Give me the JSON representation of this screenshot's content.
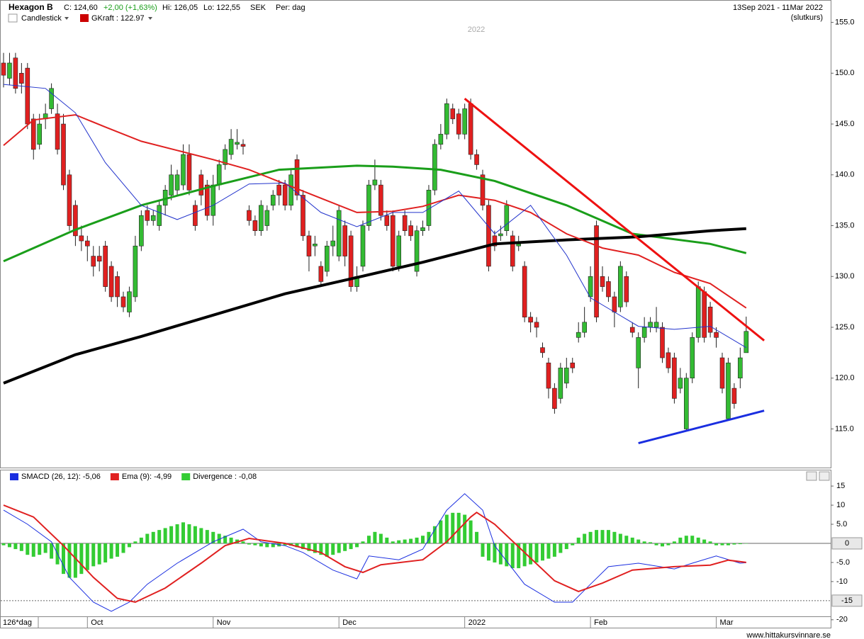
{
  "header": {
    "symbol": "Hexagon B",
    "close": "C: 124,60",
    "change": "+2,00 (+1,63%)",
    "high": "Hi: 126,05",
    "low": "Lo: 122,55",
    "currency": "SEK",
    "period": "Per: dag",
    "range": "13Sep 2021 - 11Mar 2022",
    "price_type": "(slutkurs)",
    "chart_style": "Candlestick",
    "overlay": "GKraft : 122.97",
    "watermark": "2022"
  },
  "footer": "www.hittakursvinnare.se",
  "chart_data": [
    {
      "type": "candlestick",
      "xlabel": "126*dag",
      "categories": [
        null,
        null,
        null,
        null,
        null,
        null,
        null,
        null,
        null,
        null,
        null,
        null,
        null,
        null,
        "Oct",
        null,
        null,
        null,
        null,
        null,
        null,
        null,
        null,
        null,
        null,
        null,
        null,
        null,
        null,
        null,
        null,
        null,
        null,
        null,
        null,
        "Nov",
        null,
        null,
        null,
        null,
        null,
        null,
        null,
        null,
        null,
        null,
        null,
        null,
        null,
        null,
        null,
        null,
        null,
        null,
        null,
        null,
        "Dec",
        null,
        null,
        null,
        null,
        null,
        null,
        null,
        null,
        null,
        null,
        null,
        null,
        null,
        null,
        null,
        null,
        null,
        null,
        null,
        null,
        "2022",
        null,
        null,
        null,
        null,
        null,
        null,
        null,
        null,
        null,
        null,
        null,
        null,
        null,
        null,
        null,
        null,
        null,
        null,
        null,
        null,
        "Feb",
        null,
        null,
        null,
        null,
        null,
        null,
        null,
        null,
        null,
        null,
        null,
        null,
        null,
        null,
        null,
        null,
        null,
        null,
        null,
        null,
        "Mar",
        null,
        null,
        null,
        null,
        null,
        null,
        null
      ],
      "up_color": "#33bb33",
      "down_color": "#e02020",
      "candles": {
        "open": [
          151,
          149.5,
          151.5,
          150,
          150.5,
          145.5,
          143,
          145.5,
          146.5,
          146,
          145,
          140,
          137,
          134,
          133.5,
          132,
          132,
          133,
          131,
          130,
          128,
          126.5,
          128,
          133,
          136.5,
          135.5,
          135,
          137,
          138,
          138.5,
          139,
          142,
          137,
          140,
          139,
          136,
          139,
          141,
          142,
          143,
          143,
          136.5,
          135.5,
          134.5,
          135,
          137,
          139,
          139,
          137,
          141.5,
          138,
          134,
          133,
          131,
          130.5,
          133,
          132,
          135,
          134,
          129,
          131,
          135,
          139,
          139,
          136,
          136,
          131,
          136,
          135,
          130.5,
          134.5,
          135,
          138.5,
          143,
          144,
          146.5,
          146,
          144,
          147,
          142,
          140,
          137,
          134,
          134,
          134.5,
          134,
          133,
          131,
          126,
          125.5,
          123,
          121.5,
          119,
          118,
          119.5,
          121.5,
          124,
          124.5,
          128,
          135,
          130,
          129.5,
          128,
          127,
          130,
          125,
          121,
          124,
          125,
          125,
          125,
          122.5,
          122,
          119,
          115,
          120,
          124,
          128.5,
          127,
          124.5,
          122,
          116,
          119,
          120,
          122.5
        ],
        "high": [
          152,
          152,
          152,
          151,
          151,
          146,
          146,
          147,
          149,
          147,
          146,
          140.5,
          137.5,
          135,
          134,
          133,
          133,
          133.5,
          131.5,
          130.5,
          128.5,
          129,
          134,
          136.5,
          137,
          136.5,
          137.5,
          139,
          141,
          140.5,
          143,
          143,
          137.5,
          140.5,
          139.5,
          140,
          141.5,
          143,
          144.5,
          144.5,
          143.5,
          137,
          136,
          137.5,
          137,
          138.5,
          139.5,
          139.5,
          140.5,
          142,
          138.5,
          134.5,
          134,
          131.5,
          133.5,
          135,
          137,
          135.5,
          134.5,
          131,
          135.5,
          139.5,
          141.5,
          139.5,
          136.5,
          136.5,
          134.5,
          136.5,
          135.5,
          135,
          135.5,
          139,
          143.5,
          145,
          147.5,
          147,
          146.5,
          147,
          147.5,
          142.5,
          140.5,
          137.5,
          134.5,
          135,
          137.5,
          134.5,
          134,
          131.5,
          126.5,
          126,
          123.5,
          122,
          119.5,
          121.5,
          122,
          122,
          125.5,
          127,
          131,
          135.5,
          131,
          130,
          128.5,
          131.5,
          130.5,
          125.5,
          124.5,
          126,
          126,
          127,
          125.5,
          123,
          122.5,
          121,
          120.5,
          124.5,
          129.5,
          129,
          127.5,
          125,
          122.5,
          122,
          119.5,
          123,
          126.05
        ],
        "low": [
          148.6,
          148.8,
          148,
          148,
          144.5,
          141.5,
          142.5,
          144.5,
          146,
          142,
          138.5,
          134.5,
          133,
          132.5,
          131.5,
          130,
          130.5,
          128.5,
          127.5,
          127,
          126.5,
          126,
          127.5,
          132.5,
          135,
          135,
          134.5,
          136,
          137.5,
          138,
          138.5,
          138,
          134.5,
          137,
          135.5,
          135,
          138.5,
          140.5,
          141.5,
          142.5,
          142,
          135,
          134,
          134,
          134.5,
          136.5,
          137,
          136.5,
          136.5,
          137.5,
          133.5,
          130.5,
          132,
          129,
          130,
          132,
          131.5,
          131,
          128.5,
          128.5,
          130.5,
          134.5,
          138.5,
          135.5,
          134.5,
          130.5,
          130.5,
          134,
          133.5,
          130,
          134,
          134.5,
          138,
          142.5,
          143.5,
          145,
          143.5,
          143.5,
          141.5,
          140.5,
          136.5,
          130.5,
          132.5,
          133.5,
          134,
          130.5,
          132.5,
          125.5,
          124.5,
          124,
          122,
          118,
          116.5,
          117.5,
          119,
          120.5,
          123.5,
          124,
          127.5,
          125.5,
          128.5,
          127.5,
          125,
          126.5,
          127,
          124,
          119,
          123.5,
          124.5,
          124.5,
          121.5,
          120.5,
          117.5,
          118.5,
          114.8,
          119.5,
          123.5,
          123.5,
          124,
          123,
          118.5,
          115.8,
          117,
          119,
          122.55
        ],
        "close": [
          149.8,
          151,
          148.5,
          149,
          145,
          142.5,
          145,
          146,
          148.5,
          142.5,
          139,
          135,
          134,
          133.5,
          133,
          131,
          131.5,
          129,
          128,
          128,
          127,
          128.5,
          133,
          136,
          135.5,
          136,
          137,
          138.5,
          140,
          140,
          142,
          138.5,
          135,
          138,
          136,
          139,
          141,
          142.5,
          143.5,
          143.2,
          142.8,
          135.5,
          134.5,
          137,
          136.5,
          138,
          138,
          137,
          140,
          138,
          134,
          132,
          133.2,
          129.5,
          133,
          133.5,
          136.5,
          132,
          129,
          130,
          135,
          139,
          139.5,
          136,
          135,
          131,
          134,
          134.5,
          134,
          134.5,
          134.8,
          138.5,
          143,
          144,
          147,
          145.5,
          144,
          146.5,
          142,
          141,
          137,
          131,
          133,
          134.2,
          137,
          131,
          133.2,
          126,
          125.5,
          125,
          122.5,
          119,
          117,
          121,
          121,
          121,
          124.5,
          125.5,
          130,
          126,
          129,
          128,
          126.5,
          131,
          127.5,
          124.5,
          124,
          125,
          125.5,
          125.5,
          122,
          121,
          118,
          120,
          120,
          124,
          129,
          124,
          124.5,
          124,
          119,
          121.5,
          117.5,
          122,
          124.6
        ]
      },
      "lines": [
        {
          "color": "#1a9e1a",
          "width": 3,
          "x": [
            0,
            12,
            23,
            35,
            46,
            59,
            65,
            73,
            82,
            94,
            105,
            118,
            124
          ],
          "values": [
            131.5,
            134.6,
            137,
            138.9,
            140.5,
            140.9,
            140.8,
            140.5,
            139.4,
            137,
            134.2,
            133.2,
            132.3
          ]
        },
        {
          "color": "#000000",
          "width": 4,
          "x": [
            0,
            12,
            23,
            35,
            47,
            59,
            70,
            82,
            94,
            106,
            118,
            124
          ],
          "values": [
            119.5,
            122.3,
            124.1,
            126.2,
            128.3,
            129.9,
            131.4,
            133.2,
            133.6,
            133.9,
            134.5,
            134.7
          ]
        },
        {
          "color": "#e02020",
          "width": 2,
          "x": [
            0,
            5,
            12,
            17,
            23,
            29,
            35,
            41,
            47,
            53,
            59,
            65,
            70,
            76,
            82,
            88,
            94,
            100,
            106,
            112,
            118,
            124
          ],
          "values": [
            142.9,
            145.4,
            145.9,
            144.7,
            143.3,
            142.4,
            141.5,
            140.5,
            139.1,
            137.7,
            136.3,
            136.4,
            136.9,
            138,
            137.5,
            136.3,
            134.2,
            132.8,
            132.1,
            130.4,
            129.3,
            126.9
          ]
        },
        {
          "color": "#2233cc",
          "width": 1,
          "x": [
            0,
            7,
            12,
            17,
            23,
            29,
            35,
            41,
            47,
            53,
            59,
            65,
            70,
            76,
            82,
            88,
            94,
            98,
            102,
            106,
            112,
            118,
            124
          ],
          "values": [
            148.9,
            148.5,
            146.1,
            141.2,
            137,
            135.6,
            137,
            139.1,
            139.2,
            136.3,
            134.9,
            136.3,
            136.3,
            138.4,
            134.2,
            137,
            132.1,
            127.9,
            126.5,
            125.1,
            124.8,
            125.1,
            123
          ]
        },
        {
          "color": "#ee1111",
          "width": 3,
          "x": [
            77,
            127
          ],
          "values": [
            147.5,
            123.7
          ]
        },
        {
          "color": "#1a2ee0",
          "width": 3,
          "x": [
            106,
            127
          ],
          "values": [
            113.6,
            116.8
          ]
        }
      ],
      "ylim": [
        111.2,
        157.2
      ],
      "yticks": [
        {
          "value": 115,
          "label": "115.0"
        },
        {
          "value": 120,
          "label": "120.0"
        },
        {
          "value": 125,
          "label": "125.0"
        },
        {
          "value": 130,
          "label": "130.0"
        },
        {
          "value": 135,
          "label": "135.0"
        },
        {
          "value": 140,
          "label": "140.0"
        },
        {
          "value": 145,
          "label": "145.0"
        },
        {
          "value": 150,
          "label": "150.0"
        },
        {
          "value": 155,
          "label": "155.0"
        }
      ]
    },
    {
      "type": "macd",
      "series": [
        {
          "name": "SMACD (26, 12): -5,06",
          "color": "#1a2ee0",
          "x": [
            0,
            4,
            8,
            11,
            15,
            18,
            21,
            24,
            29,
            35,
            40,
            43,
            47,
            50,
            55,
            59,
            61,
            66,
            70,
            74,
            77,
            80,
            82,
            87,
            92,
            95,
            98,
            101,
            106,
            112,
            115,
            119,
            123,
            124
          ],
          "values": [
            8.7,
            5,
            0.4,
            -8.9,
            -15.4,
            -17.8,
            -15.4,
            -10.7,
            -5.2,
            0.4,
            3.7,
            0.4,
            -0.6,
            -2.4,
            -7,
            -9.3,
            -3.3,
            -4.3,
            -1.5,
            8.7,
            13,
            8.7,
            -0.6,
            -10.7,
            -15.4,
            -15.4,
            -10.7,
            -6.1,
            -5.2,
            -6.7,
            -5.2,
            -3.3,
            -5.2,
            -5.06
          ]
        },
        {
          "name": "Ema (9): -4,99",
          "color": "#e02020",
          "x": [
            0,
            5,
            10,
            15,
            19,
            22,
            27,
            33,
            37,
            41,
            47,
            53,
            57,
            60,
            63,
            70,
            74,
            78,
            79,
            82,
            87,
            92,
            96,
            100,
            105,
            112,
            118,
            121,
            124
          ],
          "values": [
            10,
            6.9,
            -0.6,
            -8.9,
            -14.4,
            -15.4,
            -11.7,
            -5.2,
            -0.6,
            1.3,
            0,
            -2.4,
            -6.1,
            -7.6,
            -5.6,
            -4.3,
            0.4,
            6.9,
            8.1,
            5,
            -2.4,
            -9.8,
            -12.6,
            -10.4,
            -7,
            -6.1,
            -5.7,
            -4.4,
            -4.99
          ]
        }
      ],
      "histogram": {
        "name": "Divergence : -0,08",
        "color": "#33cc33",
        "values": [
          -0.5,
          -1,
          -1.5,
          -2,
          -3,
          -3.5,
          -3,
          -2.5,
          -4,
          -5.5,
          -8,
          -9,
          -9,
          -8,
          -7,
          -6,
          -5.5,
          -5,
          -4,
          -3.5,
          -2.5,
          -1,
          0.5,
          1.5,
          2.5,
          3,
          3.5,
          4,
          4.5,
          5,
          5.5,
          5,
          4.5,
          4,
          3.5,
          3,
          2.5,
          2,
          1.5,
          1,
          0.5,
          -0.3,
          -0.5,
          -0.8,
          -1,
          -1,
          -0.8,
          -0.5,
          -0.6,
          -1,
          -1.5,
          -2,
          -2.5,
          -3,
          -3.5,
          -3,
          -2.5,
          -2,
          -1.5,
          -1,
          0.5,
          2,
          3,
          2.5,
          1.5,
          0.5,
          0.8,
          1,
          1.2,
          1.5,
          2,
          3,
          4.5,
          6,
          7.5,
          8,
          8,
          7.5,
          6,
          3,
          -3.5,
          -4.5,
          -5,
          -5.5,
          -6,
          -6.5,
          -6.5,
          -6,
          -5.5,
          -5,
          -4.5,
          -4,
          -3.5,
          -2.5,
          -1.5,
          -0.5,
          1.5,
          2.5,
          3,
          3.5,
          3.5,
          3.5,
          3,
          2.5,
          2,
          1.5,
          1,
          0.5,
          0.3,
          -0.5,
          -0.8,
          -0.5,
          0.5,
          1.5,
          2,
          2,
          1.5,
          1,
          0.5,
          -0.5,
          -0.5,
          -0.5,
          -0.3,
          -0.2,
          -0.08
        ]
      },
      "ylim": [
        -20.4,
        19.1
      ],
      "yticks": [
        15,
        10,
        {
          "value": 5,
          "label": "5.0"
        },
        0,
        {
          "value": -5,
          "label": "-5.0"
        },
        -10,
        -15,
        -20
      ],
      "reference_lines": [
        0,
        -15
      ]
    }
  ]
}
